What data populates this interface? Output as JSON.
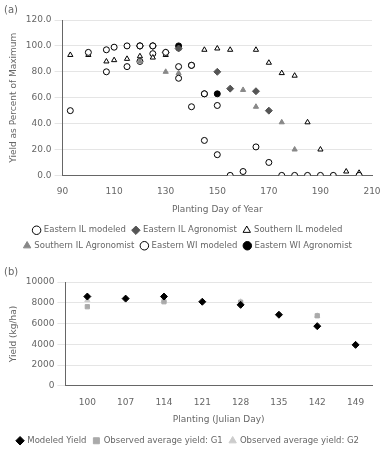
{
  "chart_data": [
    {
      "type": "scatter",
      "title": "(a)",
      "xlabel": "Planting Day of Year",
      "ylabel": "Yield as Percent of Maximum",
      "xlim": [
        90,
        210
      ],
      "ylim": [
        0,
        120
      ],
      "xticks": [
        90,
        110,
        130,
        150,
        170,
        190,
        210
      ],
      "yticks": [
        {
          "value": 0,
          "label": "0.0"
        },
        {
          "value": 20,
          "label": "20.0"
        },
        {
          "value": 40,
          "label": "40.0"
        },
        {
          "value": 60,
          "label": "60.0"
        },
        {
          "value": 80,
          "label": "80.0"
        },
        {
          "value": 100,
          "label": "100.0"
        },
        {
          "value": 120,
          "label": "120.0"
        }
      ],
      "grid": true,
      "legend": "bottom",
      "series": [
        {
          "name": "Eastern IL modeled",
          "color": "#000000",
          "marker": "open_circle",
          "x": [
            93,
            100,
            107,
            110,
            115,
            120,
            125,
            130,
            135,
            140,
            145,
            150,
            160,
            165,
            170,
            175,
            180,
            185,
            190,
            195,
            205
          ],
          "values": [
            50,
            95,
            97,
            99,
            100,
            100,
            100,
            95,
            75,
            53,
            27,
            16,
            3,
            22,
            10,
            0,
            0,
            0,
            0,
            0,
            0
          ]
        },
        {
          "name": "Eastern IL Agronomist",
          "color": "#555555",
          "marker": "diamond",
          "x": [
            120,
            125,
            130,
            135,
            150,
            155,
            165,
            170
          ],
          "values": [
            100,
            100,
            95,
            98,
            80,
            67,
            65,
            50
          ]
        },
        {
          "name": "Southern IL modeled",
          "color": "#000000",
          "marker": "open_triangle",
          "x": [
            93,
            100,
            107,
            110,
            115,
            120,
            125,
            130,
            135,
            145,
            150,
            155,
            165,
            170,
            175,
            180,
            185,
            190,
            195,
            200,
            205
          ],
          "values": [
            93,
            93,
            88,
            89,
            90,
            92,
            91,
            93,
            98,
            97,
            98,
            97,
            97,
            87,
            79,
            77,
            41,
            20,
            0,
            3,
            2
          ]
        },
        {
          "name": "Southern IL Agronomist",
          "color": "#888888",
          "marker": "triangle",
          "x": [
            120,
            130,
            135,
            160,
            165,
            175,
            180,
            185
          ],
          "values": [
            88,
            80,
            79,
            66,
            53,
            41,
            20,
            0
          ]
        },
        {
          "name": "Eastern WI modeled",
          "color": "#000000",
          "marker": "open_circle",
          "x": [
            107,
            115,
            120,
            125,
            135,
            140,
            145,
            150,
            155
          ],
          "values": [
            80,
            84,
            88,
            94,
            84,
            85,
            63,
            54,
            0
          ]
        },
        {
          "name": "Eastern WI Agronomist",
          "color": "#000000",
          "marker": "circle",
          "x": [
            120,
            125,
            135,
            140,
            145,
            150
          ],
          "values": [
            100,
            100,
            100,
            85,
            63,
            63
          ]
        }
      ]
    },
    {
      "type": "scatter",
      "title": "(b)",
      "xlabel": "Planting (Julian Day)",
      "ylabel": "Yield (kg/ha)",
      "xlim": [
        96,
        152
      ],
      "ylim": [
        0,
        10000
      ],
      "xticks": [
        100,
        107,
        114,
        121,
        128,
        135,
        142,
        149
      ],
      "yticks": [
        0,
        2000,
        4000,
        6000,
        8000,
        10000
      ],
      "grid": true,
      "legend": "bottom",
      "series": [
        {
          "name": "Modeled Yield",
          "color": "#000000",
          "marker": "diamond",
          "x": [
            100,
            107,
            114,
            121,
            128,
            135,
            142,
            149
          ],
          "values": [
            8600,
            8400,
            8600,
            8100,
            7800,
            6850,
            5750,
            3950
          ]
        },
        {
          "name": "Observed average yield: G1",
          "color": "#aaaaaa",
          "marker": "square",
          "x": [
            100,
            114,
            128,
            142
          ],
          "values": [
            7620,
            8100,
            8050,
            6750
          ]
        },
        {
          "name": "Observed average yield: G2",
          "color": "#cccccc",
          "marker": "triangle",
          "x": [
            100,
            114,
            128,
            142
          ],
          "values": [
            8250,
            8200,
            8100,
            6750
          ]
        }
      ]
    }
  ]
}
